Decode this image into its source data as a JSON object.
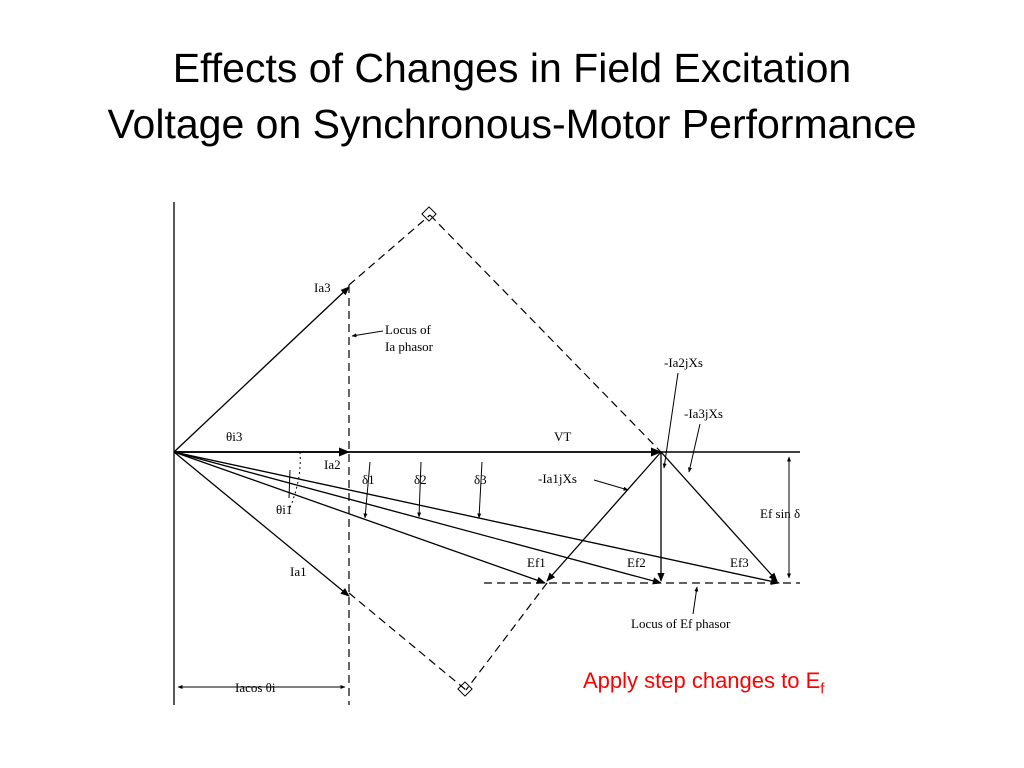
{
  "slide": {
    "title_line1": "Effects of Changes in Field Excitation",
    "title_line2": "Voltage on Synchronous-Motor Performance",
    "note_text": "Apply step changes to E",
    "note_sub": "f"
  },
  "diagram": {
    "labels": {
      "ia3": "Ia3",
      "locus_ia_line1": "Locus of",
      "locus_ia_line2": "Ia phasor",
      "theta_i3": "θi3",
      "vt": "VT",
      "ia2": "Ia2",
      "delta1": "δ1",
      "delta2": "δ2",
      "delta3": "δ3",
      "theta_i1": "θi1",
      "ia1": "Ia1",
      "ef1": "Ef1",
      "ef2": "Ef2",
      "ef3": "Ef3",
      "ia2jxs": "-Ia2jXs",
      "ia3jxs": "-Ia3jXs",
      "ia1jxs": "-Ia1jXs",
      "ef_sin_delta": "Ef sin δ",
      "locus_ef": "Locus of Ef phasor",
      "ia_cos_theta": "Iacos θi"
    },
    "colors": {
      "lines": "#000000",
      "note": "#ff0000"
    }
  }
}
